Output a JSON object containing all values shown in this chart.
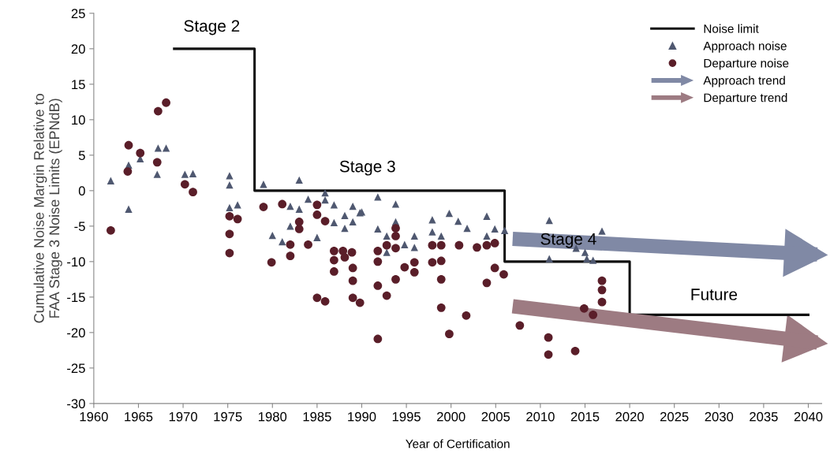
{
  "chart_data": {
    "type": "scatter",
    "xlabel": "Year of Certification",
    "ylabel": "Cumulative Noise Margin Relative to\nFAA Stage 3 Noise Limits (EPNdB)",
    "xlim": [
      1960,
      2041.5
    ],
    "xticks": [
      1960,
      1965,
      1970,
      1975,
      1980,
      1985,
      1990,
      1995,
      2000,
      2005,
      2010,
      2015,
      2020,
      2025,
      2030,
      2035,
      2040
    ],
    "ylim": [
      -30,
      25
    ],
    "yticks": [
      -30,
      -25,
      -20,
      -15,
      -10,
      -5,
      0,
      5,
      10,
      15,
      20,
      25
    ],
    "grid": false,
    "legend": "top right",
    "series": [
      {
        "name": "Noise limit",
        "type": "step",
        "color": "#111111",
        "x": [
          1969,
          1978,
          2006,
          2020,
          2040
        ],
        "values": [
          20,
          0,
          -10,
          -17.5,
          -17.5
        ]
      },
      {
        "name": "Approach noise",
        "marker": "triangle",
        "color": "#4f5870",
        "x": [
          1961.9,
          1963.9,
          1963.9,
          1965.2,
          1967.2,
          1968.1,
          1967.1,
          1970.2,
          1971.1,
          1975.2,
          1975.2,
          1975.2,
          1976.1,
          1979.0,
          1983.0,
          1982.0,
          1983.0,
          1984.0,
          1985.9,
          1985.9,
          1986.9,
          1986.9,
          1988.1,
          1988.1,
          1989.0,
          1989.0,
          1989.8,
          1982.0,
          1980.0,
          1981.1,
          1985.0,
          1990.0,
          1991.8,
          1993.8,
          1991.8,
          1992.8,
          1992.8,
          1993.8,
          1994.8,
          1995.9,
          1995.9,
          1997.9,
          1997.9,
          1998.9,
          1999.8,
          2000.8,
          2001.8,
          2004.0,
          2004.0,
          2004.9,
          2006.0,
          2011.0,
          2011.0,
          2014.0,
          2015.0,
          2015.2,
          2015.9,
          2016.9
        ],
        "values": [
          1.4,
          3.6,
          -2.6,
          4.5,
          6.0,
          6.0,
          2.3,
          2.3,
          2.4,
          2.1,
          0.8,
          -2.4,
          -2.0,
          0.9,
          1.5,
          -2.2,
          -2.6,
          -1.2,
          -0.3,
          -1.3,
          -2.0,
          -4.5,
          -3.5,
          -5.3,
          -2.2,
          -4.4,
          -3.1,
          -5.0,
          -6.3,
          -7.2,
          -6.6,
          -3.0,
          -0.9,
          -1.9,
          -5.4,
          -6.4,
          -8.7,
          -4.4,
          -7.6,
          -6.4,
          -8.0,
          -4.1,
          -5.8,
          -6.4,
          -3.2,
          -4.3,
          -5.3,
          -3.6,
          -6.4,
          -5.4,
          -5.6,
          -4.2,
          -9.6,
          -8.1,
          -8.7,
          -9.6,
          -9.8,
          -5.7
        ]
      },
      {
        "name": "Departure noise",
        "marker": "circle",
        "color": "#5a1e29",
        "x": [
          1961.9,
          1963.9,
          1963.8,
          1965.2,
          1967.2,
          1968.1,
          1967.1,
          1970.2,
          1971.1,
          1975.2,
          1976.1,
          1975.2,
          1975.2,
          1979.0,
          1981.1,
          1985.0,
          1985.0,
          1985.9,
          1983.0,
          1983.0,
          1982.0,
          1984.0,
          1982.0,
          1979.9,
          1986.9,
          1987.9,
          1988.9,
          1986.9,
          1988.1,
          1986.9,
          1989.0,
          1989.0,
          1985.0,
          1985.9,
          1989.0,
          1989.8,
          1991.8,
          1991.8,
          1993.8,
          1993.8,
          1993.8,
          1992.8,
          1994.8,
          1995.9,
          1995.9,
          1993.8,
          1991.8,
          1992.8,
          1997.9,
          1997.9,
          1998.9,
          1998.9,
          1998.9,
          1998.9,
          2000.9,
          2002.9,
          2004.0,
          2004.9,
          2004.0,
          2004.9,
          2005.9,
          2001.7,
          1999.8,
          1991.8,
          2007.7,
          2010.9,
          2010.9,
          2013.9,
          2016.9,
          2016.9,
          2016.9,
          2014.9,
          2015.9
        ],
        "values": [
          -5.6,
          6.4,
          2.7,
          5.3,
          11.2,
          12.4,
          4.0,
          0.9,
          -0.2,
          -3.6,
          -4.0,
          -6.1,
          -8.8,
          -2.3,
          -1.9,
          -2.0,
          -3.4,
          -4.3,
          -4.4,
          -5.4,
          -7.6,
          -7.6,
          -9.2,
          -10.1,
          -8.5,
          -8.5,
          -8.7,
          -9.8,
          -9.4,
          -11.4,
          -10.9,
          -12.7,
          -15.1,
          -15.6,
          -15.1,
          -15.8,
          -8.5,
          -10.0,
          -5.3,
          -6.4,
          -8.1,
          -7.7,
          -10.8,
          -10.1,
          -11.5,
          -12.5,
          -13.4,
          -14.8,
          -7.7,
          -10.1,
          -7.7,
          -9.9,
          -12.5,
          -16.5,
          -7.7,
          -8.0,
          -7.7,
          -7.4,
          -13.0,
          -10.9,
          -11.8,
          -17.6,
          -20.2,
          -20.9,
          -19.0,
          -20.7,
          -23.1,
          -22.6,
          -12.7,
          -14.0,
          -15.7,
          -16.6,
          -17.5
        ]
      },
      {
        "name": "Approach trend",
        "type": "line",
        "color": "#8089a5",
        "x": [
          2006.9,
          2041
        ],
        "values": [
          -6.8,
          -9.0
        ]
      },
      {
        "name": "Departure trend",
        "type": "line",
        "color": "#9d7b82",
        "x": [
          2006.9,
          2041
        ],
        "values": [
          -16.3,
          -21.4
        ]
      }
    ],
    "annotations": [
      "Stage 2",
      "Stage 3",
      "Stage 4",
      "Future"
    ]
  }
}
